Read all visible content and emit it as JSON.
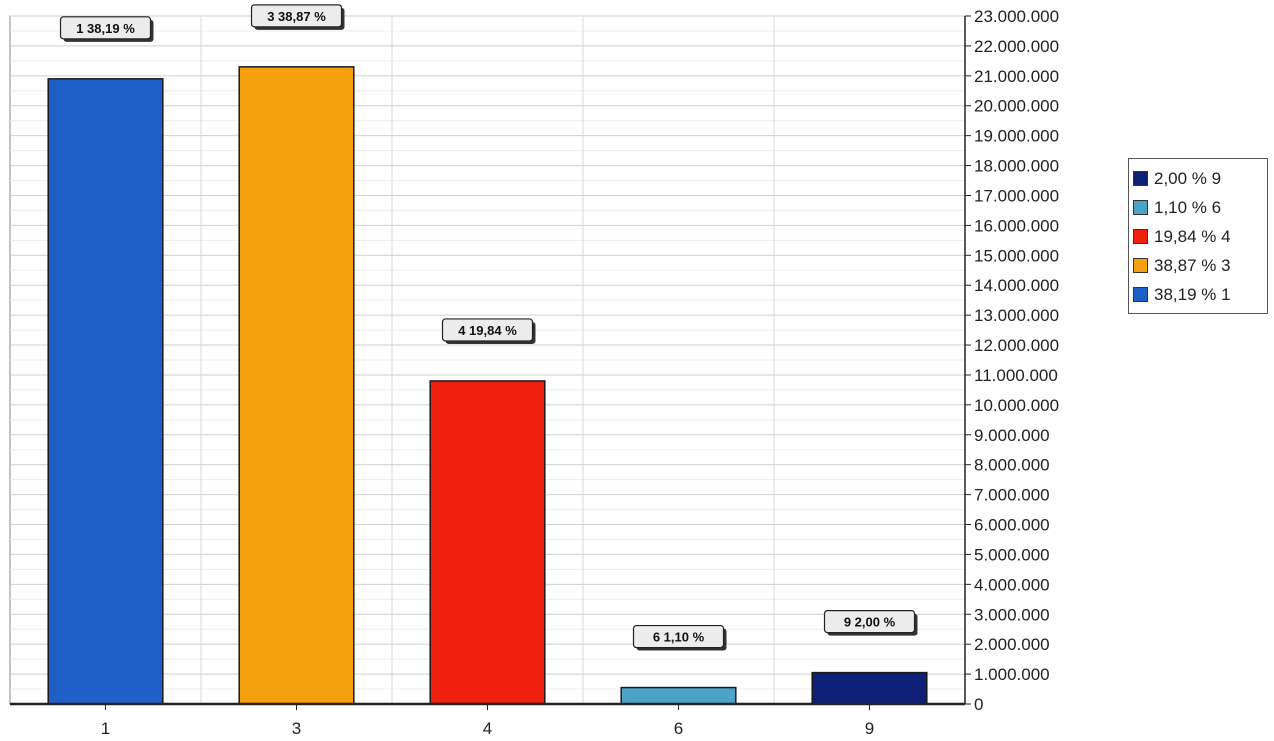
{
  "chart_data": {
    "type": "bar",
    "categories": [
      "1",
      "3",
      "4",
      "6",
      "9"
    ],
    "values": [
      20900000,
      21300000,
      10800000,
      550000,
      1050000
    ],
    "colors": [
      "#1f5fc8",
      "#f5a10f",
      "#f0200e",
      "#4aa3c8",
      "#0e1f78"
    ],
    "data_labels": [
      "1 38,19 %",
      "3 38,87 %",
      "4 19,84 %",
      "6 1,10 %",
      "9 2,00 %"
    ],
    "title": "",
    "xlabel": "",
    "ylabel": "",
    "ylim": [
      0,
      23000000
    ],
    "y_ticks": [
      0,
      1000000,
      2000000,
      3000000,
      4000000,
      5000000,
      6000000,
      7000000,
      8000000,
      9000000,
      10000000,
      11000000,
      12000000,
      13000000,
      14000000,
      15000000,
      16000000,
      17000000,
      18000000,
      19000000,
      20000000,
      21000000,
      22000000,
      23000000
    ],
    "y_tick_labels": [
      "0",
      "1.000.000",
      "2.000.000",
      "3.000.000",
      "4.000.000",
      "5.000.000",
      "6.000.000",
      "7.000.000",
      "8.000.000",
      "9.000.000",
      "10.000.000",
      "11.000.000",
      "12.000.000",
      "13.000.000",
      "14.000.000",
      "15.000.000",
      "16.000.000",
      "17.000.000",
      "18.000.000",
      "19.000.000",
      "20.000.000",
      "21.000.000",
      "22.000.000",
      "23.000.000"
    ],
    "y_axis_side": "right",
    "grid": true,
    "legend_position": "right",
    "legend": [
      {
        "label": "2,00 % 9",
        "color": "#0e1f78"
      },
      {
        "label": "1,10 % 6",
        "color": "#4aa3c8"
      },
      {
        "label": "19,84 % 4",
        "color": "#f0200e"
      },
      {
        "label": "38,87 % 3",
        "color": "#f5a10f"
      },
      {
        "label": "38,19 % 1",
        "color": "#1f5fc8"
      }
    ]
  }
}
